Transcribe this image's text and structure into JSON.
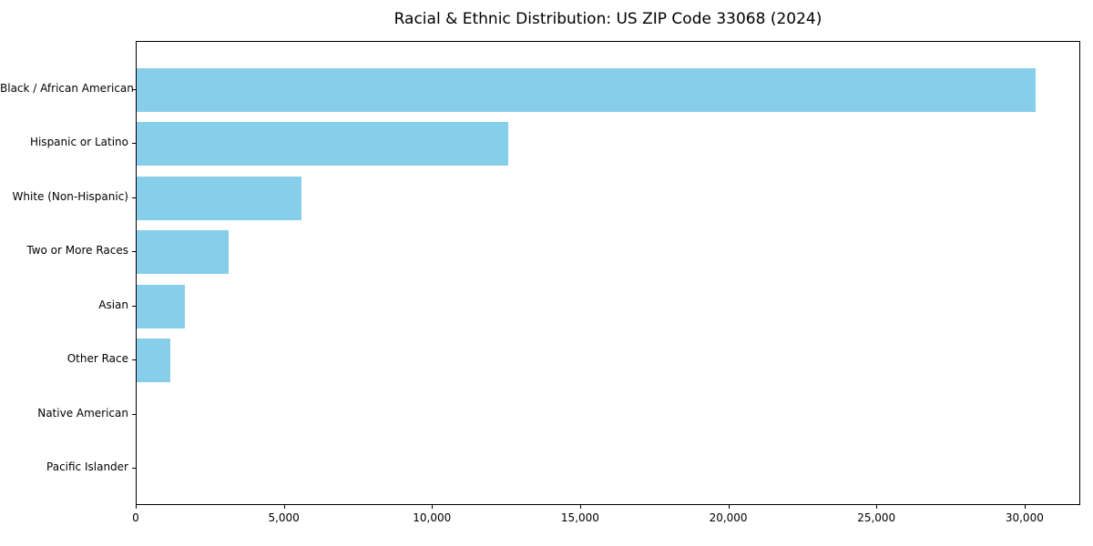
{
  "chart_data": {
    "type": "bar",
    "orientation": "horizontal",
    "title": "Racial & Ethnic Distribution: US ZIP Code 33068 (2024)",
    "categories": [
      "Black / African American",
      "Hispanic or Latino",
      "White (Non-Hispanic)",
      "Two or More Races",
      "Asian",
      "Other Race",
      "Native American",
      "Pacific Islander"
    ],
    "values": [
      30340,
      12540,
      5570,
      3100,
      1630,
      1140,
      0,
      0
    ],
    "xlabel": "",
    "ylabel": "",
    "xlim": [
      0,
      31880
    ],
    "xticks": [
      0,
      5000,
      10000,
      15000,
      20000,
      25000,
      30000
    ],
    "xtick_labels": [
      "0",
      "5,000",
      "10,000",
      "15,000",
      "20,000",
      "25,000",
      "30,000"
    ],
    "bar_color": "#87CEEB",
    "grid": false,
    "legend": null
  }
}
